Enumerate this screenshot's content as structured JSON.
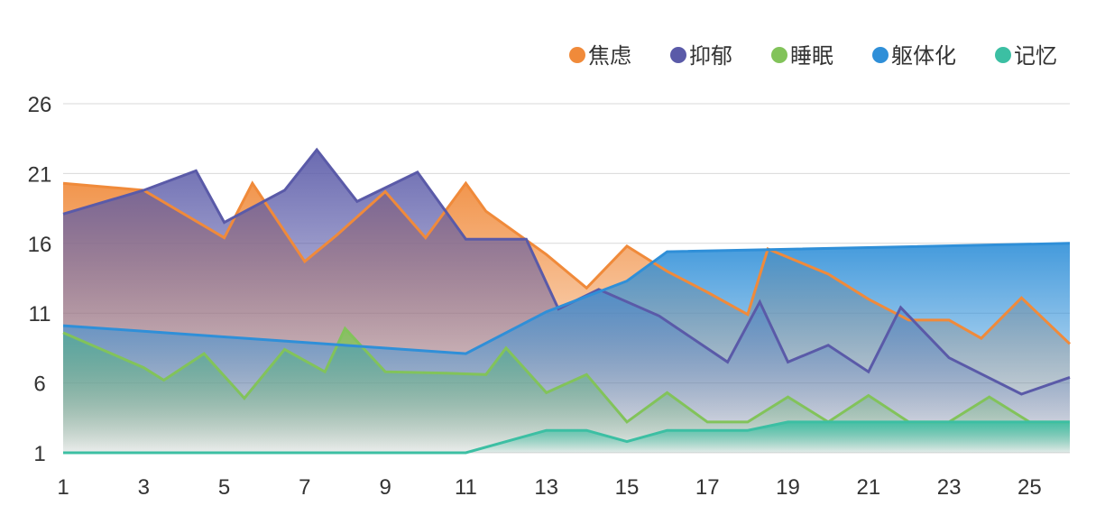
{
  "chart_data": {
    "type": "area",
    "title": "",
    "xlabel": "",
    "ylabel": "",
    "x_ticks": [
      1,
      3,
      5,
      7,
      9,
      11,
      13,
      15,
      17,
      19,
      21,
      23,
      25
    ],
    "y_ticks": [
      1,
      6,
      11,
      16,
      21,
      26
    ],
    "xlim": [
      1,
      26
    ],
    "ylim": [
      1,
      26
    ],
    "grid": true,
    "legend_position": "top-right",
    "series": [
      {
        "name": "焦虑",
        "color": "#f08a3a",
        "x": [
          1,
          3,
          5,
          5.7,
          7,
          7.8,
          9,
          10,
          11,
          11.5,
          13,
          14,
          15,
          16,
          17,
          18,
          18.5,
          20,
          21,
          22,
          23,
          23.8,
          24.8,
          26
        ],
        "y": [
          20.3,
          19.8,
          16.4,
          20.3,
          14.7,
          16.6,
          19.7,
          16.4,
          20.3,
          18.3,
          15.2,
          12.8,
          15.8,
          14.0,
          12.5,
          10.9,
          15.6,
          13.8,
          12.0,
          10.5,
          10.5,
          9.2,
          12.1,
          8.8
        ]
      },
      {
        "name": "抑郁",
        "color": "#5a5aa8",
        "x": [
          1,
          3,
          4.3,
          5,
          6.5,
          7.3,
          8.3,
          9.8,
          11,
          12.5,
          13.3,
          14.3,
          15.8,
          17.5,
          18.3,
          19,
          20,
          21,
          21.8,
          23,
          24.8,
          26
        ],
        "y": [
          18.1,
          19.8,
          21.2,
          17.5,
          19.8,
          22.7,
          19.0,
          21.1,
          16.3,
          16.3,
          11.3,
          12.7,
          10.8,
          7.5,
          11.8,
          7.5,
          8.7,
          6.8,
          11.4,
          7.8,
          5.2,
          6.4
        ]
      },
      {
        "name": "睡眠",
        "color": "#82c35a",
        "x": [
          1,
          3,
          3.5,
          4.5,
          5.5,
          6.5,
          7.5,
          8,
          9,
          10.5,
          11.5,
          12,
          13,
          14,
          15,
          16,
          17,
          18,
          19,
          20,
          21,
          22,
          23,
          24,
          25,
          26
        ],
        "y": [
          9.6,
          7.1,
          6.2,
          8.1,
          4.9,
          8.4,
          6.8,
          9.9,
          6.8,
          6.7,
          6.6,
          8.5,
          5.3,
          6.6,
          3.2,
          5.3,
          3.2,
          3.2,
          5.0,
          3.2,
          5.1,
          3.2,
          3.2,
          5.0,
          3.2,
          3.2
        ]
      },
      {
        "name": "躯体化",
        "color": "#2f8fd8",
        "x": [
          1,
          11,
          13,
          15,
          16,
          26
        ],
        "y": [
          10.1,
          8.1,
          11.1,
          13.3,
          15.4,
          16.0
        ]
      },
      {
        "name": "记忆",
        "color": "#3cbfa3",
        "x": [
          1,
          11,
          13,
          14,
          15,
          16,
          17,
          18,
          19,
          20,
          21,
          26
        ],
        "y": [
          1.0,
          1.0,
          2.6,
          2.6,
          1.8,
          2.6,
          2.6,
          2.6,
          3.2,
          3.2,
          3.2,
          3.2
        ]
      }
    ]
  }
}
